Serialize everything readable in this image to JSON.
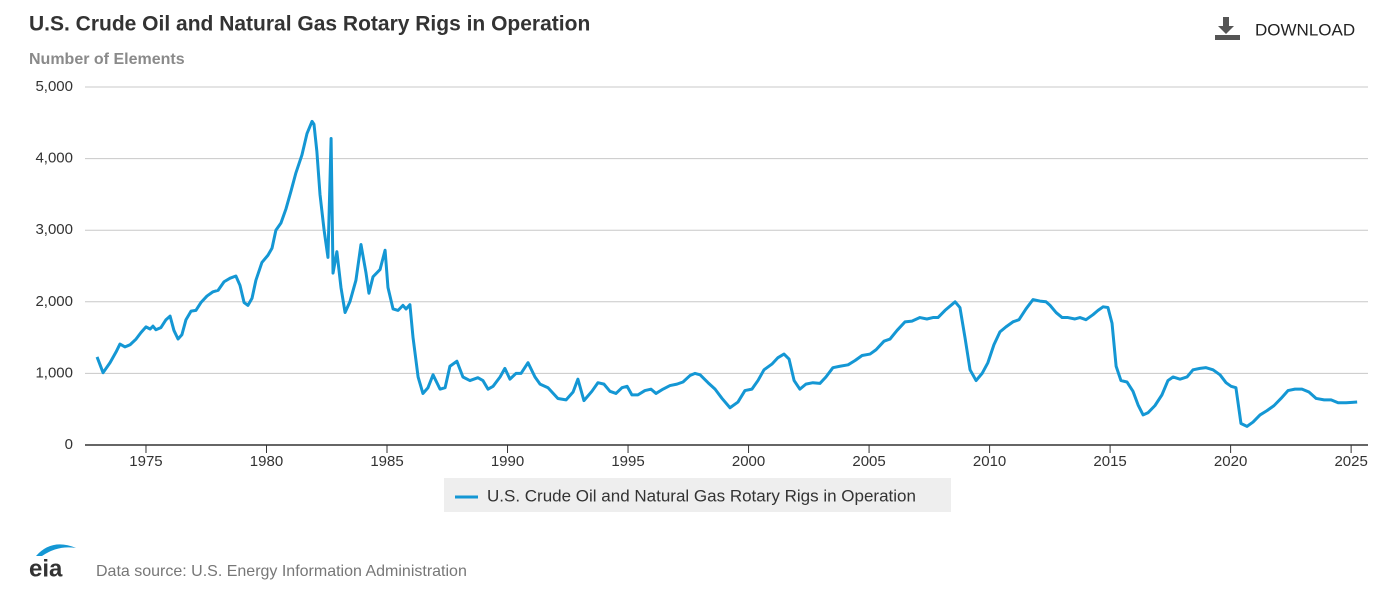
{
  "chart_data": {
    "type": "line",
    "title": "U.S. Crude Oil and Natural Gas Rotary Rigs in Operation",
    "y_label": "Number of Elements",
    "x": [
      1972.97,
      1973.22,
      1973.51,
      1973.76,
      1973.92,
      1974.13,
      1974.34,
      1974.59,
      1974.79,
      1975.0,
      1975.17,
      1975.29,
      1975.41,
      1975.62,
      1975.83,
      1976.0,
      1976.16,
      1976.33,
      1976.49,
      1976.66,
      1976.87,
      1977.07,
      1977.28,
      1977.53,
      1977.78,
      1977.99,
      1978.24,
      1978.49,
      1978.73,
      1978.9,
      1979.07,
      1979.23,
      1979.4,
      1979.56,
      1979.81,
      1980.06,
      1980.23,
      1980.39,
      1980.6,
      1980.81,
      1981.02,
      1981.22,
      1981.47,
      1981.68,
      1981.89,
      1981.97,
      1982.09,
      1982.22,
      1982.39,
      1982.55,
      1982.68,
      1982.76,
      1982.92,
      1983.09,
      1983.26,
      1983.46,
      1983.71,
      1983.92,
      1984.13,
      1984.25,
      1984.42,
      1984.71,
      1984.92,
      1985.04,
      1985.25,
      1985.46,
      1985.66,
      1985.79,
      1985.95,
      1986.08,
      1986.29,
      1986.49,
      1986.7,
      1986.91,
      1987.2,
      1987.41,
      1987.61,
      1987.9,
      1988.15,
      1988.44,
      1988.77,
      1988.98,
      1989.19,
      1989.4,
      1989.69,
      1989.89,
      1990.1,
      1990.35,
      1990.56,
      1990.85,
      1991.14,
      1991.35,
      1991.68,
      1992.09,
      1992.43,
      1992.72,
      1992.92,
      1993.17,
      1993.5,
      1993.75,
      1994.0,
      1994.25,
      1994.5,
      1994.75,
      1994.96,
      1995.16,
      1995.41,
      1995.7,
      1995.95,
      1996.16,
      1996.45,
      1996.74,
      1997.03,
      1997.28,
      1997.57,
      1997.78,
      1997.99,
      1998.32,
      1998.61,
      1998.9,
      1999.23,
      1999.56,
      1999.85,
      2000.14,
      2000.39,
      2000.64,
      2000.97,
      2001.22,
      2001.47,
      2001.68,
      2001.89,
      2002.13,
      2002.38,
      2002.67,
      2002.96,
      2003.21,
      2003.5,
      2003.79,
      2004.13,
      2004.42,
      2004.71,
      2005.04,
      2005.29,
      2005.62,
      2005.87,
      2006.16,
      2006.49,
      2006.78,
      2007.11,
      2007.4,
      2007.65,
      2007.86,
      2008.15,
      2008.57,
      2008.77,
      2008.98,
      2009.19,
      2009.44,
      2009.69,
      2009.93,
      2010.18,
      2010.43,
      2010.68,
      2010.97,
      2011.22,
      2011.51,
      2011.8,
      2012.09,
      2012.34,
      2012.51,
      2012.76,
      2013.01,
      2013.25,
      2013.54,
      2013.75,
      2014.0,
      2014.29,
      2014.5,
      2014.71,
      2014.91,
      2015.08,
      2015.25,
      2015.45,
      2015.7,
      2015.95,
      2016.16,
      2016.37,
      2016.57,
      2016.86,
      2017.15,
      2017.4,
      2017.61,
      2017.9,
      2018.19,
      2018.44,
      2018.73,
      2018.98,
      2019.27,
      2019.56,
      2019.81,
      2020.02,
      2020.22,
      2020.43,
      2020.68,
      2020.93,
      2021.22,
      2021.51,
      2021.8,
      2022.09,
      2022.38,
      2022.67,
      2022.96,
      2023.25,
      2023.55,
      2023.88,
      2024.17,
      2024.46,
      2024.79,
      2025.04,
      2025.25
    ],
    "series": [
      {
        "name": "U.S. Crude Oil and Natural Gas Rotary Rigs in Operation",
        "color": "#1497d4",
        "values": [
          1230,
          1010,
          1150,
          1300,
          1410,
          1370,
          1400,
          1480,
          1570,
          1650,
          1620,
          1660,
          1610,
          1640,
          1750,
          1800,
          1600,
          1480,
          1540,
          1750,
          1870,
          1880,
          1990,
          2080,
          2140,
          2160,
          2280,
          2330,
          2360,
          2230,
          1990,
          1950,
          2050,
          2300,
          2550,
          2650,
          2750,
          3000,
          3100,
          3300,
          3550,
          3800,
          4050,
          4350,
          4520,
          4480,
          4100,
          3500,
          3000,
          2620,
          4280,
          2400,
          2700,
          2200,
          1850,
          2000,
          2300,
          2800,
          2400,
          2120,
          2350,
          2450,
          2720,
          2200,
          1900,
          1880,
          1950,
          1900,
          1960,
          1500,
          950,
          720,
          800,
          980,
          780,
          800,
          1100,
          1170,
          950,
          900,
          940,
          900,
          780,
          820,
          950,
          1070,
          920,
          1000,
          1000,
          1150,
          950,
          850,
          800,
          650,
          630,
          740,
          920,
          620,
          750,
          870,
          850,
          750,
          720,
          800,
          820,
          700,
          700,
          760,
          780,
          720,
          780,
          830,
          850,
          880,
          970,
          1000,
          980,
          870,
          780,
          650,
          520,
          600,
          760,
          780,
          900,
          1050,
          1130,
          1220,
          1270,
          1200,
          900,
          780,
          850,
          870,
          860,
          950,
          1080,
          1100,
          1120,
          1180,
          1250,
          1270,
          1330,
          1450,
          1480,
          1600,
          1720,
          1730,
          1780,
          1760,
          1780,
          1780,
          1880,
          2000,
          1920,
          1500,
          1050,
          900,
          1000,
          1150,
          1400,
          1580,
          1650,
          1720,
          1750,
          1900,
          2030,
          2010,
          2000,
          1950,
          1850,
          1780,
          1780,
          1760,
          1780,
          1750,
          1820,
          1880,
          1930,
          1920,
          1700,
          1100,
          900,
          880,
          750,
          560,
          420,
          450,
          550,
          700,
          900,
          950,
          920,
          950,
          1050,
          1070,
          1080,
          1050,
          980,
          870,
          820,
          800,
          300,
          260,
          320,
          420,
          480,
          550,
          650,
          760,
          780,
          780,
          740,
          650,
          630,
          630,
          590,
          590,
          595,
          600
        ]
      }
    ],
    "xlim": [
      1972.47,
      2025.7
    ],
    "xticks": [
      1975,
      1980,
      1985,
      1990,
      1995,
      2000,
      2005,
      2010,
      2015,
      2020,
      2025
    ],
    "ylim": [
      0,
      5000
    ],
    "yticks": [
      0,
      {
        "value": 1000,
        "label": "1,000"
      },
      {
        "value": 2000,
        "label": "2,000"
      },
      {
        "value": 3000,
        "label": "3,000"
      },
      {
        "value": 4000,
        "label": "4,000"
      },
      {
        "value": 5000,
        "label": "5,000"
      }
    ],
    "grid": true,
    "legend": "bottom"
  },
  "download": "DOWNLOAD",
  "logo": "eia",
  "source": "Data source: U.S. Energy Information Administration"
}
